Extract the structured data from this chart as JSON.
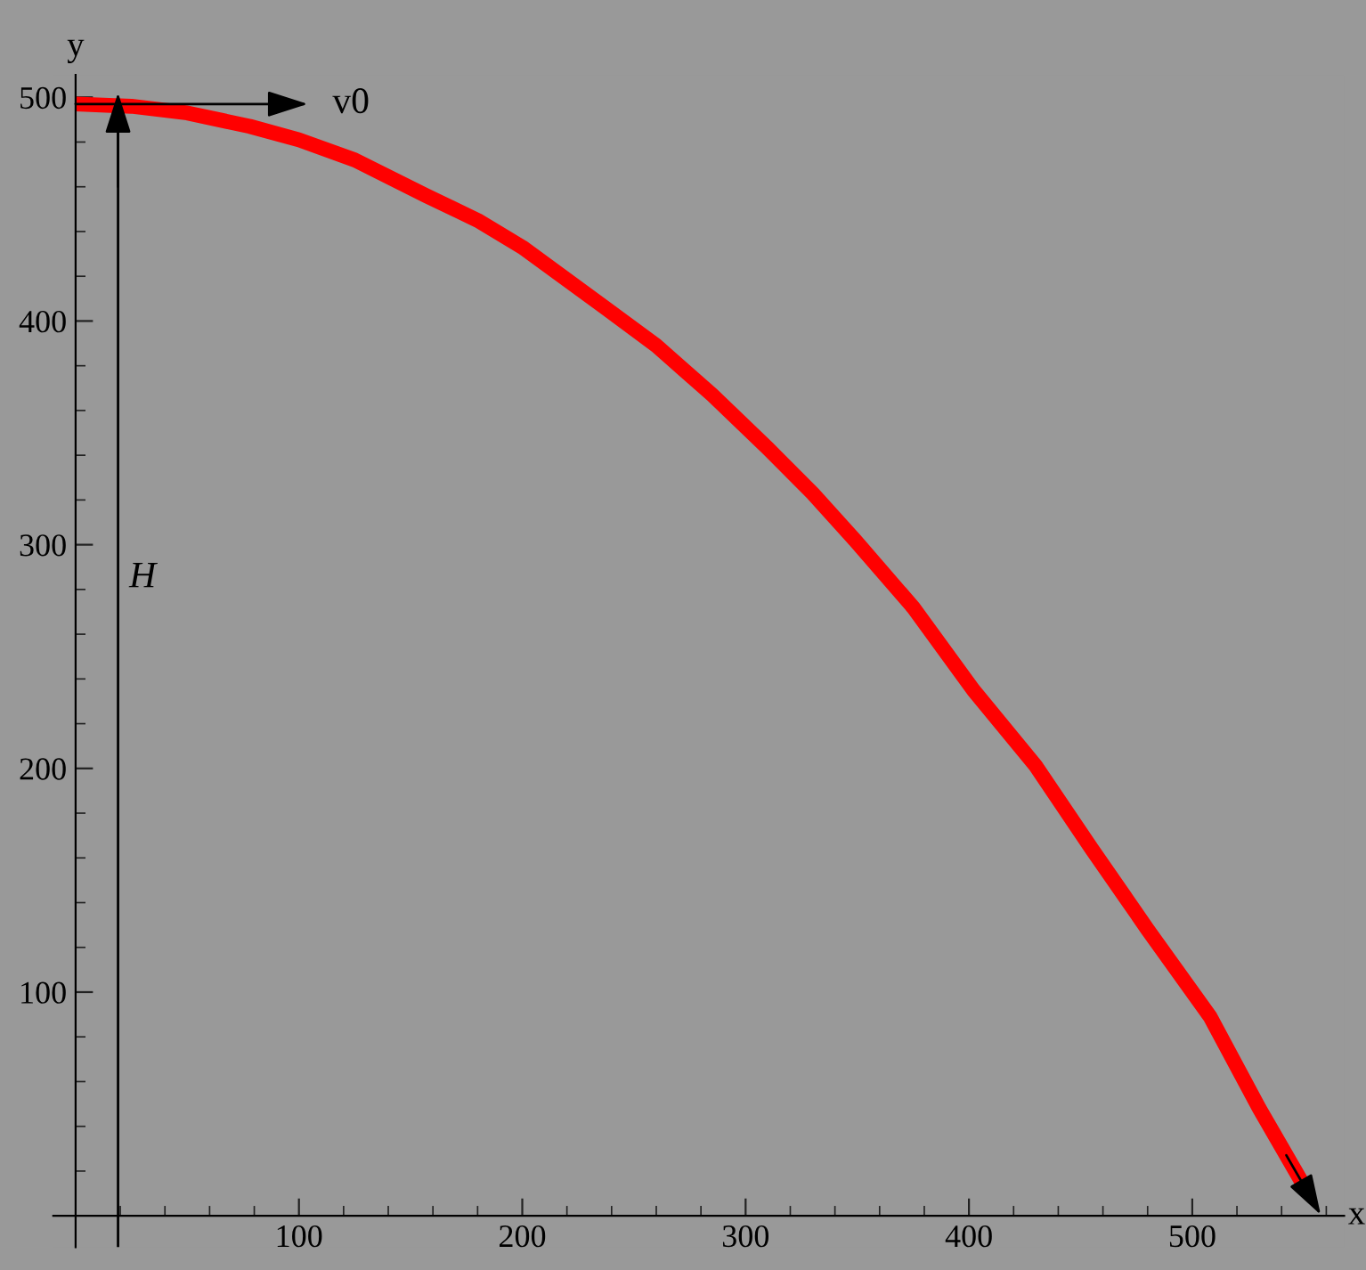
{
  "chart_data": {
    "type": "line",
    "xlabel": "x",
    "ylabel": "y",
    "x": [
      0,
      25,
      50,
      78,
      100,
      125,
      157,
      180,
      200,
      237,
      260,
      285,
      310,
      330,
      349,
      375,
      402,
      430,
      455,
      480,
      508,
      530,
      552
    ],
    "series": [
      {
        "color": "#ff0000",
        "values": [
          497,
          496,
          493,
          487,
          481,
          472,
          456,
          445,
          433,
          406,
          389,
          367,
          343,
          323,
          302,
          272,
          235,
          201,
          164,
          128,
          89,
          48,
          10
        ]
      }
    ],
    "xlim": [
      -10,
      568
    ],
    "ylim": [
      -14,
      510
    ],
    "xticks": [
      100,
      200,
      300,
      400,
      500
    ],
    "yticks": [
      100,
      200,
      300,
      400,
      500
    ],
    "grid": false,
    "legend": false,
    "ref_lines": [
      {
        "axis": "x",
        "value": 19,
        "label": "H",
        "color": "#000000"
      }
    ],
    "annotations": [
      {
        "text": "v0",
        "x": 0,
        "y": 497
      }
    ]
  }
}
